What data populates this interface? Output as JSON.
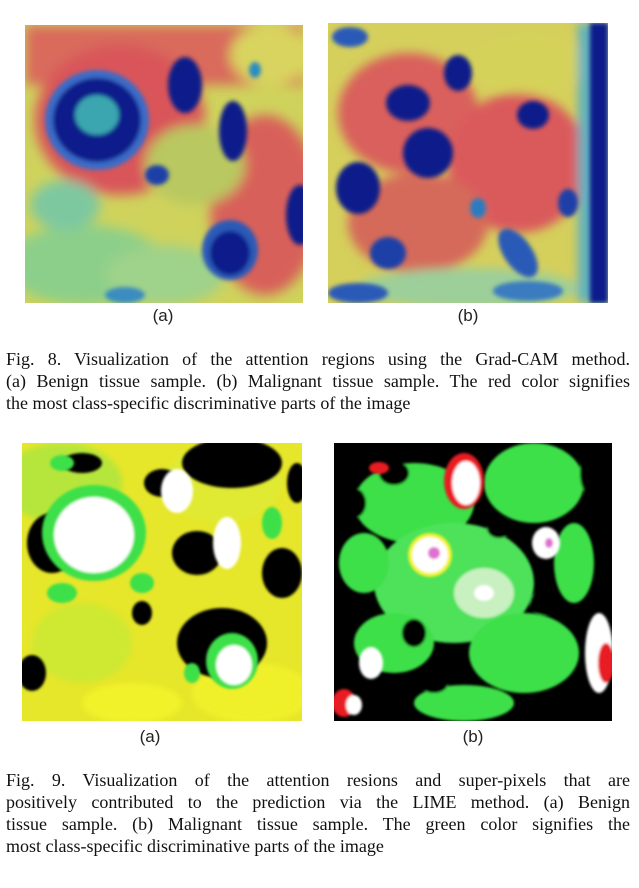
{
  "figure8": {
    "panel_a_label": "(a)",
    "panel_b_label": "(b)",
    "caption_lines": [
      "Fig. 8.  Visualization of the attention regions using the Grad-CAM method.",
      "(a) Benign tissue sample. (b) Malignant tissue sample. The red color signifies",
      "the most class-specific discriminative parts of the image"
    ]
  },
  "figure9": {
    "panel_a_label": "(a)",
    "panel_b_label": "(b)",
    "caption_lines": [
      "Fig. 9.  Visualization of the attention resions and super-pixels that are",
      "positively contributed to the prediction via the LIME method. (a) Benign",
      "tissue sample. (b) Malignant tissue sample. The green color signifies the",
      "most class-specific discriminative parts of the image"
    ]
  },
  "colors": {
    "gradcam_red": "#d9545a",
    "gradcam_yellow": "#d8d45a",
    "gradcam_green": "#7ec88a",
    "gradcam_blue": "#0b1d8a",
    "lime_green": "#3ee04a",
    "lime_yellow": "#f2f22a",
    "lime_black": "#000000",
    "lime_white": "#ffffff",
    "lime_red": "#e81a24"
  }
}
